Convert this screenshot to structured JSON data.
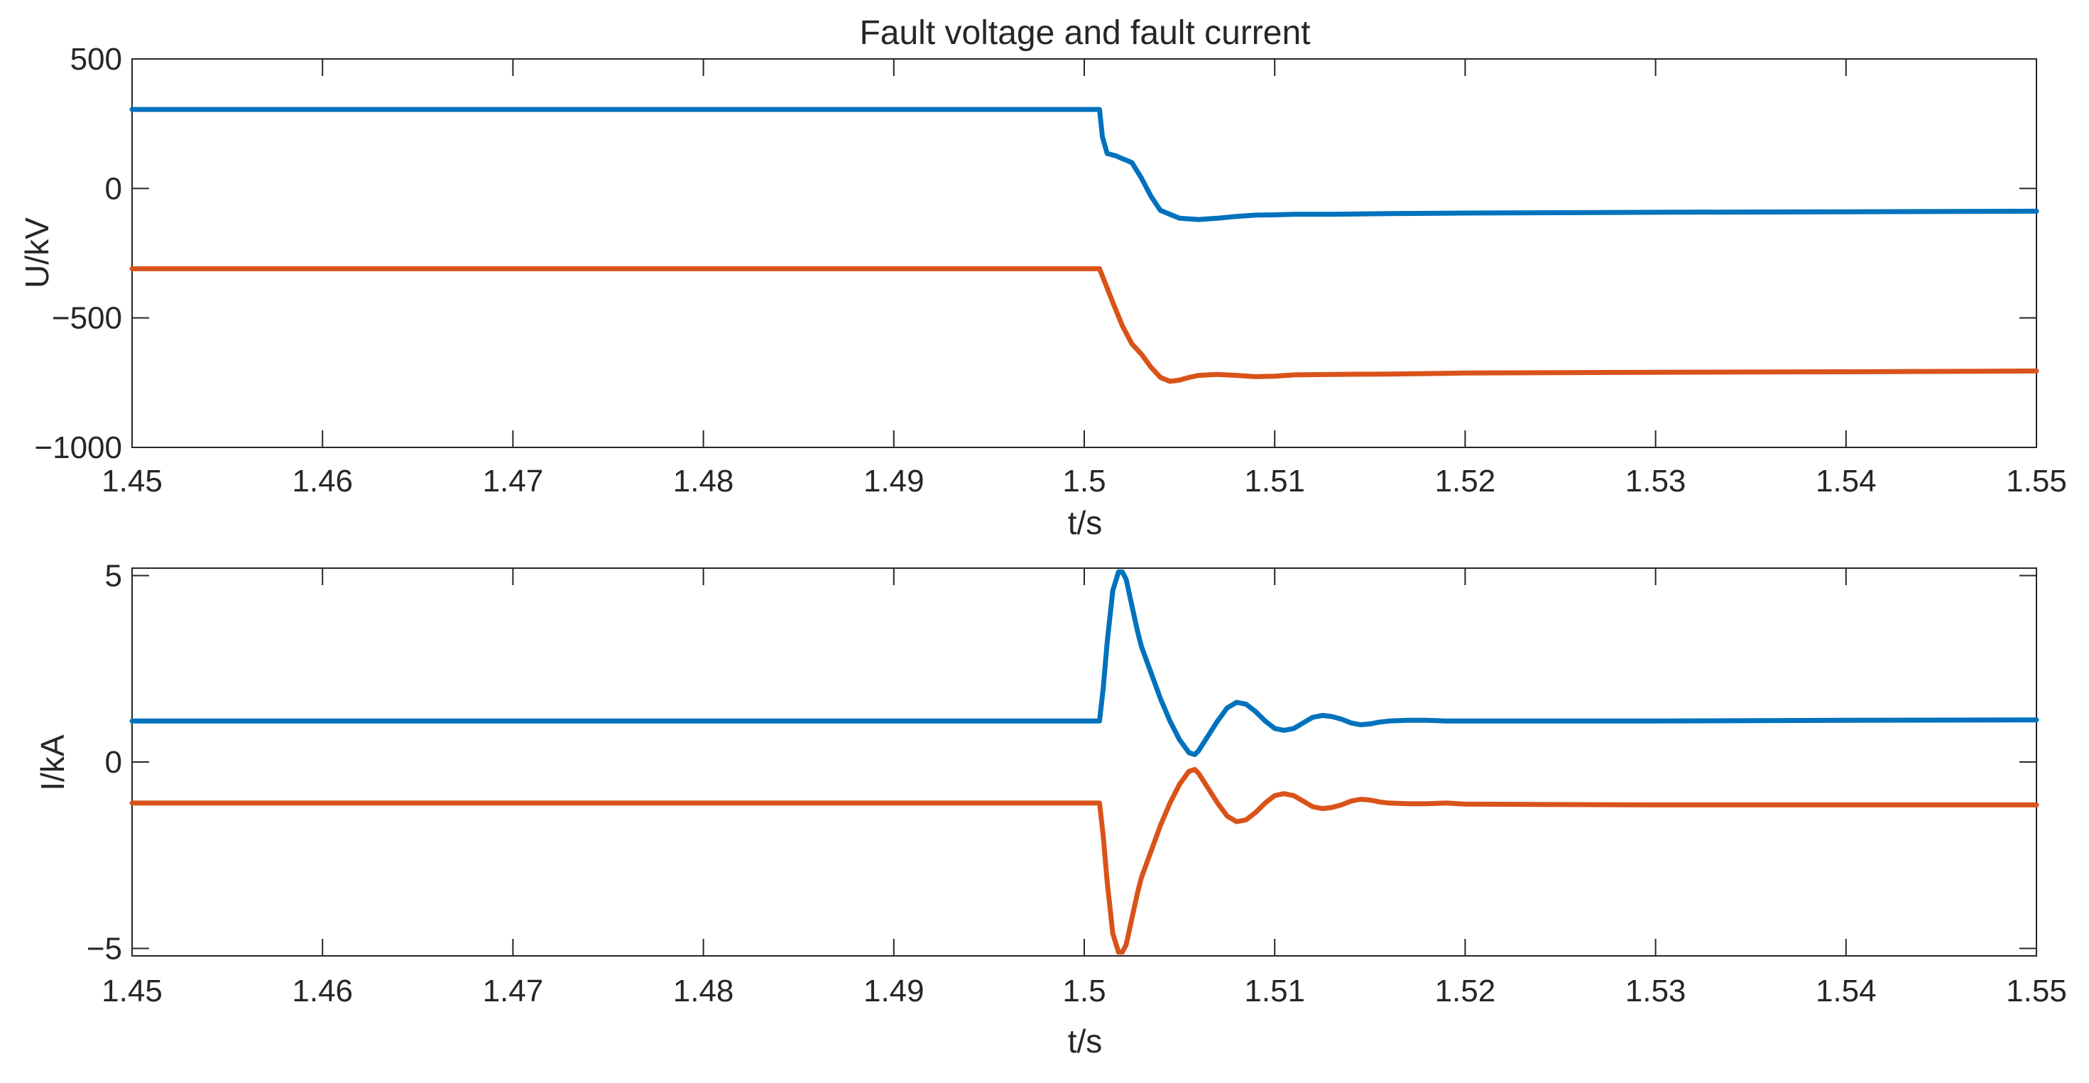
{
  "chart_data": [
    {
      "type": "line",
      "title": "Fault voltage and fault current",
      "xlabel": "t/s",
      "ylabel": "U/kV",
      "xlim": [
        1.45,
        1.55
      ],
      "ylim": [
        -1000,
        500
      ],
      "xticks": [
        1.45,
        1.46,
        1.47,
        1.48,
        1.49,
        1.5,
        1.51,
        1.52,
        1.53,
        1.54,
        1.55
      ],
      "xtick_labels": [
        "1.45",
        "1.46",
        "1.47",
        "1.48",
        "1.49",
        "1.5",
        "1.51",
        "1.52",
        "1.53",
        "1.54",
        "1.55"
      ],
      "yticks": [
        -1000,
        -500,
        0,
        500
      ],
      "ytick_labels": [
        "−1000",
        "−500",
        "0",
        "500"
      ],
      "grid": false,
      "series": [
        {
          "color": "#0072BD",
          "x": [
            1.45,
            1.5008,
            1.50095,
            1.5012,
            1.5017,
            1.502,
            1.5025,
            1.503,
            1.5035,
            1.504,
            1.505,
            1.506,
            1.507,
            1.508,
            1.509,
            1.51,
            1.511,
            1.513,
            1.516,
            1.52,
            1.53,
            1.54,
            1.55
          ],
          "y": [
            305,
            305,
            200,
            135,
            125,
            115,
            100,
            40,
            -30,
            -85,
            -115,
            -120,
            -115,
            -108,
            -103,
            -102,
            -100,
            -100,
            -97,
            -95,
            -92,
            -90,
            -88
          ]
        },
        {
          "color": "#D95319",
          "x": [
            1.45,
            1.5008,
            1.5015,
            1.502,
            1.5025,
            1.503,
            1.5035,
            1.504,
            1.5045,
            1.505,
            1.5055,
            1.506,
            1.507,
            1.508,
            1.509,
            1.51,
            1.511,
            1.513,
            1.516,
            1.52,
            1.53,
            1.54,
            1.55
          ],
          "y": [
            -310,
            -310,
            -440,
            -530,
            -600,
            -640,
            -690,
            -730,
            -745,
            -740,
            -730,
            -722,
            -718,
            -722,
            -727,
            -725,
            -720,
            -718,
            -717,
            -713,
            -710,
            -708,
            -705
          ]
        }
      ]
    },
    {
      "type": "line",
      "title": "",
      "xlabel": "t/s",
      "ylabel": "I/kA",
      "xlim": [
        1.45,
        1.55
      ],
      "ylim": [
        -5.2,
        5.2
      ],
      "xticks": [
        1.45,
        1.46,
        1.47,
        1.48,
        1.49,
        1.5,
        1.51,
        1.52,
        1.53,
        1.54,
        1.55
      ],
      "xtick_labels": [
        "1.45",
        "1.46",
        "1.47",
        "1.48",
        "1.49",
        "1.5",
        "1.51",
        "1.52",
        "1.53",
        "1.54",
        "1.55"
      ],
      "yticks": [
        -5,
        0,
        5
      ],
      "ytick_labels": [
        "−5",
        "0",
        "5"
      ],
      "grid": false,
      "series": [
        {
          "color": "#0072BD",
          "x": [
            1.45,
            1.5008,
            1.501,
            1.5012,
            1.5015,
            1.5018,
            1.502,
            1.5022,
            1.5025,
            1.5028,
            1.503,
            1.5035,
            1.504,
            1.5045,
            1.505,
            1.5055,
            1.5058,
            1.506,
            1.5065,
            1.507,
            1.5075,
            1.508,
            1.5085,
            1.509,
            1.5095,
            1.51,
            1.5105,
            1.511,
            1.5115,
            1.512,
            1.5125,
            1.513,
            1.5135,
            1.514,
            1.5145,
            1.515,
            1.5155,
            1.516,
            1.517,
            1.518,
            1.519,
            1.52,
            1.53,
            1.54,
            1.55
          ],
          "y": [
            1.1,
            1.1,
            2.0,
            3.2,
            4.6,
            5.1,
            5.1,
            4.9,
            4.2,
            3.5,
            3.1,
            2.4,
            1.7,
            1.1,
            0.6,
            0.25,
            0.2,
            0.3,
            0.7,
            1.1,
            1.45,
            1.6,
            1.55,
            1.35,
            1.1,
            0.9,
            0.85,
            0.9,
            1.05,
            1.2,
            1.25,
            1.22,
            1.15,
            1.05,
            1.0,
            1.02,
            1.07,
            1.1,
            1.12,
            1.12,
            1.1,
            1.1,
            1.1,
            1.12,
            1.13
          ]
        },
        {
          "color": "#D95319",
          "x": [
            1.45,
            1.5008,
            1.501,
            1.5012,
            1.5015,
            1.5018,
            1.502,
            1.5022,
            1.5025,
            1.5028,
            1.503,
            1.5035,
            1.504,
            1.5045,
            1.505,
            1.5055,
            1.5058,
            1.506,
            1.5065,
            1.507,
            1.5075,
            1.508,
            1.5085,
            1.509,
            1.5095,
            1.51,
            1.5105,
            1.511,
            1.5115,
            1.512,
            1.5125,
            1.513,
            1.5135,
            1.514,
            1.5145,
            1.515,
            1.5155,
            1.516,
            1.517,
            1.518,
            1.519,
            1.52,
            1.53,
            1.54,
            1.55
          ],
          "y": [
            -1.1,
            -1.1,
            -2.0,
            -3.2,
            -4.6,
            -5.1,
            -5.1,
            -4.9,
            -4.2,
            -3.5,
            -3.1,
            -2.4,
            -1.7,
            -1.1,
            -0.6,
            -0.25,
            -0.2,
            -0.3,
            -0.7,
            -1.1,
            -1.45,
            -1.6,
            -1.55,
            -1.35,
            -1.1,
            -0.9,
            -0.85,
            -0.9,
            -1.05,
            -1.2,
            -1.25,
            -1.22,
            -1.15,
            -1.05,
            -1.0,
            -1.02,
            -1.07,
            -1.1,
            -1.12,
            -1.12,
            -1.1,
            -1.13,
            -1.15,
            -1.15,
            -1.15
          ]
        }
      ]
    }
  ]
}
